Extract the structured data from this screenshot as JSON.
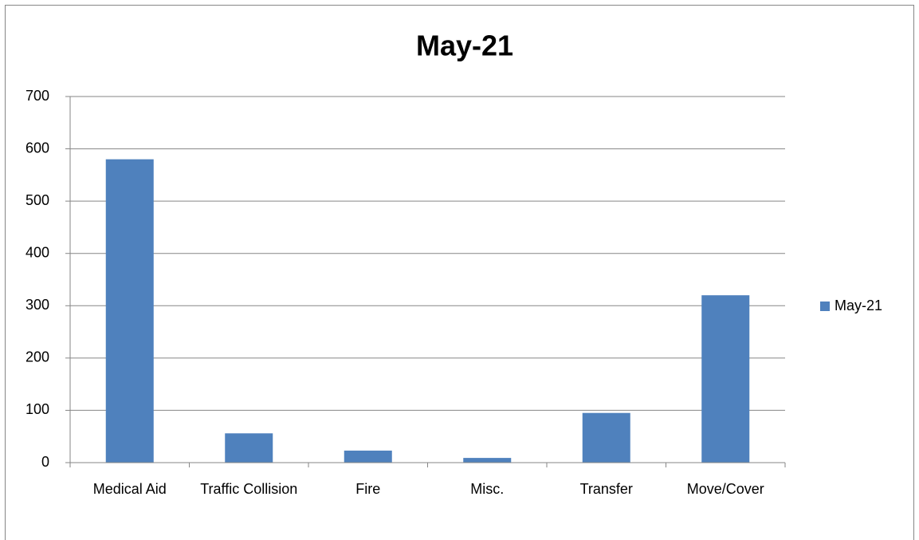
{
  "chart_data": {
    "type": "bar",
    "title": "May-21",
    "categories": [
      "Medical Aid",
      "Traffic Collision",
      "Fire",
      "Misc.",
      "Transfer",
      "Move/Cover"
    ],
    "series": [
      {
        "name": "May-21",
        "color": "#4f81bd",
        "values": [
          580,
          56,
          23,
          9,
          95,
          320
        ]
      }
    ],
    "ylim": [
      0,
      700
    ],
    "yticks": [
      0,
      100,
      200,
      300,
      400,
      500,
      600,
      700
    ],
    "grid": true,
    "legend": "right"
  }
}
